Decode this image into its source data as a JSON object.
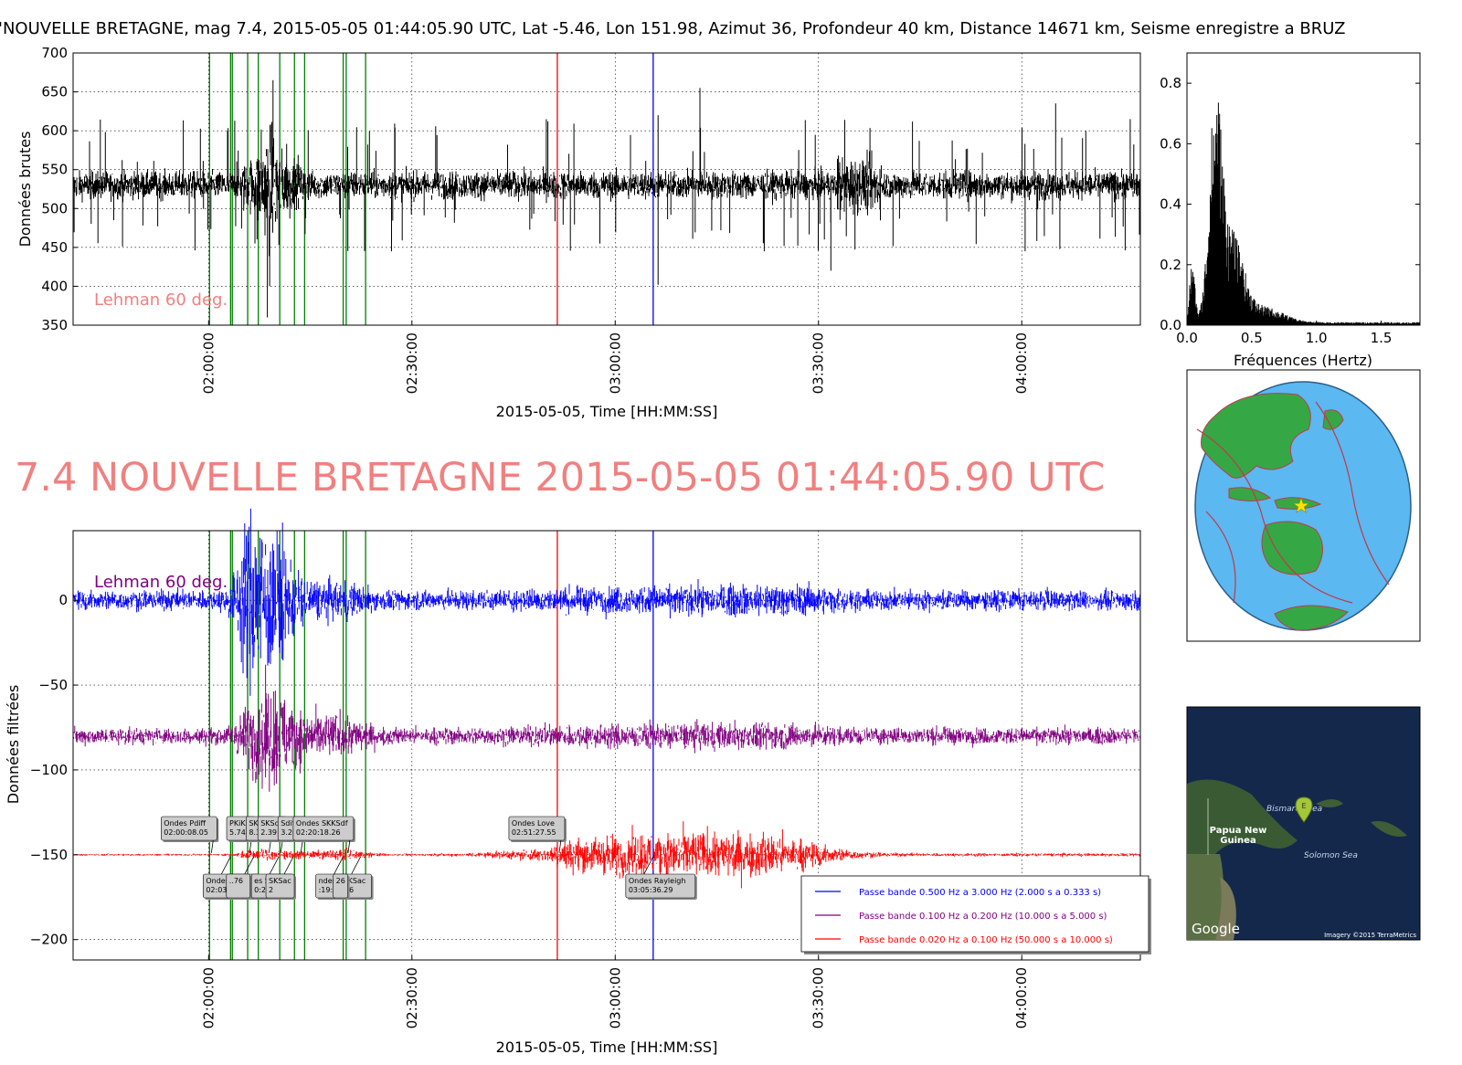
{
  "header": {
    "title": "'NOUVELLE BRETAGNE, mag 7.4, 2015-05-05 01:44:05.90 UTC, Lat -5.46, Lon 151.98, Azimut  36, Profondeur 40 km, Distance 14671 km, Seisme enregistre a BRUZ"
  },
  "headline": "7.4 NOUVELLE BRETAGNE 2015-05-05 01:44:05.90 UTC",
  "colors": {
    "headline": "#f08080",
    "raw_trace": "#000000",
    "phase_line": "#008000",
    "love_line": "#ff0000",
    "rayleigh_line": "#0000ff",
    "ocean": "#5bb8f0",
    "land": "#35a845",
    "plate": "#c0394b"
  },
  "chart_data": [
    {
      "id": "raw",
      "type": "line",
      "title": "",
      "xlabel": "2015-05-05, Time [HH:MM:SS]",
      "ylabel": "Données brutes",
      "ylim": [
        350,
        700
      ],
      "yticks": [
        350,
        400,
        450,
        500,
        550,
        600,
        650,
        700
      ],
      "xlim": [
        "01:40:00",
        "04:17:30"
      ],
      "xticks": [
        "02:00:00",
        "02:30:00",
        "03:00:00",
        "03:30:00",
        "04:00:00"
      ],
      "grid": true,
      "annotation": "Lehman 60 deg.",
      "baseline": 530,
      "spikes": [
        {
          "t": "02:09:30",
          "v": 665
        },
        {
          "t": "02:09:00",
          "v": 400
        },
        {
          "t": "02:08:40",
          "v": 360
        },
        {
          "t": "02:06:50",
          "v": 455
        },
        {
          "t": "03:06:20",
          "v": 620
        },
        {
          "t": "03:06:20",
          "v": 402
        },
        {
          "t": "03:12:30",
          "v": 655
        },
        {
          "t": "03:31:50",
          "v": 420
        },
        {
          "t": "04:05:00",
          "v": 635
        },
        {
          "t": "04:00:30",
          "v": 445
        },
        {
          "t": "03:22:00",
          "v": 445
        },
        {
          "t": "02:27:00",
          "v": 445
        },
        {
          "t": "01:46:00",
          "v": 485
        },
        {
          "t": "04:16:00",
          "v": 615
        }
      ]
    },
    {
      "id": "spectrum",
      "type": "line",
      "xlabel": "Fréquences (Hertz)",
      "xlim": [
        0,
        1.8
      ],
      "ylim": [
        0,
        0.9
      ],
      "xticks": [
        0.0,
        0.5,
        1.0,
        1.5
      ],
      "yticks": [
        0.0,
        0.2,
        0.4,
        0.6,
        0.8
      ],
      "peak": {
        "x": 0.22,
        "y": 0.71
      }
    },
    {
      "id": "filtered",
      "type": "line",
      "xlabel": "2015-05-05, Time [HH:MM:SS]",
      "ylabel": "Données filtrées",
      "ylim": [
        -212,
        41
      ],
      "yticks": [
        0,
        -50,
        -100,
        -150,
        -200
      ],
      "xlim": [
        "01:40:00",
        "04:17:30"
      ],
      "xticks": [
        "02:00:00",
        "02:30:00",
        "03:00:00",
        "03:30:00",
        "04:00:00"
      ],
      "grid": true,
      "annotation": "Lehman 60 deg.",
      "series": [
        {
          "name": "Passe bande 0.500 Hz a 3.000 Hz (2.000 s a 0.333 s)",
          "color": "#0000ff",
          "offset": 0
        },
        {
          "name": "Passe bande 0.100 Hz a 0.200 Hz (10.000 s a 5.000 s)",
          "color": "#800080",
          "offset": -80
        },
        {
          "name": "Passe bande 0.020 Hz a 0.100 Hz (50.000 s a 10.000 s)",
          "color": "#ff0000",
          "offset": -150
        }
      ],
      "legend_position": "lower-right"
    }
  ],
  "phases": [
    {
      "t": "02:00:08.05",
      "kind": "green"
    },
    {
      "t": "02:03:14.44",
      "kind": "green"
    },
    {
      "t": "02:03:30",
      "kind": "green"
    },
    {
      "t": "02:05:45.74",
      "kind": "green"
    },
    {
      "t": "02:07:20",
      "kind": "green"
    },
    {
      "t": "02:10:30",
      "kind": "green"
    },
    {
      "t": "02:12:40",
      "kind": "green"
    },
    {
      "t": "02:14:10",
      "kind": "green"
    },
    {
      "t": "02:19:51.56",
      "kind": "green"
    },
    {
      "t": "02:20:18.26",
      "kind": "green"
    },
    {
      "t": "02:23:10",
      "kind": "green"
    },
    {
      "t": "02:51:27.55",
      "kind": "red"
    },
    {
      "t": "03:05:36.29",
      "kind": "blue"
    }
  ],
  "labels_upper": [
    {
      "t": "02:00:08.05",
      "lines": [
        "Ondes Pdiff",
        "02:00:08.05"
      ]
    },
    {
      "t": "02:05:45.74",
      "lines": [
        "PKiKP",
        "5.74"
      ]
    },
    {
      "t": "02:08:38",
      "lines": [
        "SKiKP",
        "8.38"
      ]
    },
    {
      "t": "02:10:22",
      "lines": [
        "SKSdf",
        "2.39"
      ]
    },
    {
      "t": "02:13:20",
      "lines": [
        "Sdiff",
        "3.20"
      ]
    },
    {
      "t": "02:20:18.26",
      "lines": [
        "Ondes SKKSdf",
        "02:20:18.26"
      ]
    },
    {
      "t": "02:51:27.55",
      "lines": [
        "Ondes Love",
        "02:51:27.55"
      ]
    }
  ],
  "labels_lower": [
    {
      "t": "02:03:14.44",
      "lines": [
        "Ondes PKPdf",
        "02:03:14.44"
      ]
    },
    {
      "t": "02:06:40",
      "lines": [
        "..76"
      ]
    },
    {
      "t": "02:10:21.58",
      "lines": [
        "es SKSac",
        "0:21.58"
      ]
    },
    {
      "t": "02:12:30",
      "lines": [
        "SKSac",
        "2"
      ]
    },
    {
      "t": "02:19:51.56",
      "lines": [
        "ndes SKKSac",
        ":19:51.56"
      ]
    },
    {
      "t": "02:22:26",
      "lines": [
        "26"
      ]
    },
    {
      "t": "03:05:36.29",
      "lines": [
        "Ondes Rayleigh",
        "03:05:36.29"
      ]
    }
  ],
  "globe_map": {
    "caption": "globe-map"
  },
  "satellite_map": {
    "labels": [
      "Bismarck Sea",
      "Papua New Guinea",
      "Solomon Sea"
    ],
    "pin_letter": "E",
    "brand": "Google",
    "credit": "Imagery ©2015 TerraMetrics"
  }
}
